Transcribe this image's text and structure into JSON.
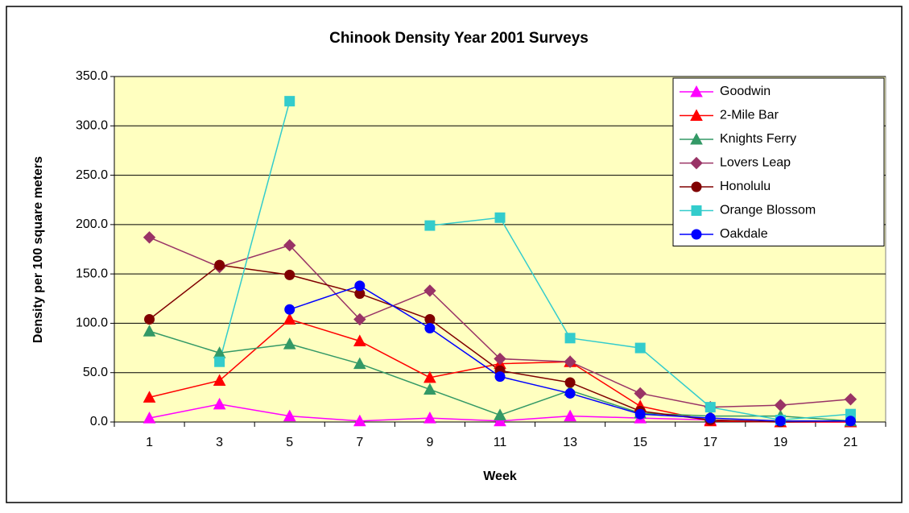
{
  "chart_data": {
    "type": "line",
    "title": "Chinook Density Year 2001 Surveys",
    "x_label": "Week",
    "y_label": "Density per 100 square meters",
    "categories": [
      "1",
      "3",
      "5",
      "7",
      "9",
      "11",
      "13",
      "15",
      "17",
      "19",
      "21"
    ],
    "ylim": [
      0,
      350
    ],
    "yticks": [
      {
        "value": 0,
        "label": "0.0"
      },
      {
        "value": 50,
        "label": "50.0"
      },
      {
        "value": 100,
        "label": "100.0"
      },
      {
        "value": 150,
        "label": "150.0"
      },
      {
        "value": 200,
        "label": "200.0"
      },
      {
        "value": 250,
        "label": "250.0"
      },
      {
        "value": 300,
        "label": "300.0"
      },
      {
        "value": 350,
        "label": "350.0"
      }
    ],
    "grid": true,
    "legend": "top-right",
    "series": [
      {
        "name": "Goodwin",
        "color": "#ff00ff",
        "marker": "triangle",
        "values": [
          4,
          18,
          6,
          1,
          4,
          1,
          6,
          4,
          2,
          0,
          0
        ]
      },
      {
        "name": "2-Mile Bar",
        "color": "#ff0000",
        "marker": "triangle",
        "values": [
          25,
          42,
          104,
          82,
          45,
          59,
          61,
          16,
          1,
          0,
          0
        ]
      },
      {
        "name": "Knights Ferry",
        "color": "#339966",
        "marker": "triangle",
        "values": [
          92,
          70,
          79,
          59,
          33,
          7,
          32,
          9,
          6,
          6,
          1
        ]
      },
      {
        "name": "Lovers Leap",
        "color": "#993366",
        "marker": "diamond",
        "values": [
          187,
          157,
          179,
          104,
          133,
          64,
          61,
          29,
          15,
          17,
          23
        ]
      },
      {
        "name": "Honolulu",
        "color": "#800000",
        "marker": "circle",
        "values": [
          104,
          159,
          149,
          130,
          104,
          52,
          40,
          11,
          2,
          0,
          1
        ]
      },
      {
        "name": "Orange Blossom",
        "color": "#33cccc",
        "marker": "square",
        "values": [
          null,
          61,
          325,
          null,
          199,
          207,
          85,
          75,
          15,
          2,
          8
        ]
      },
      {
        "name": "Oakdale",
        "color": "#0000ff",
        "marker": "circle",
        "values": [
          null,
          null,
          114,
          138,
          95,
          46,
          29,
          8,
          4,
          1,
          1
        ]
      }
    ]
  }
}
